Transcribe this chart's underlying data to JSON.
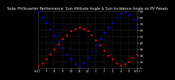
{
  "title": "Solar PV/Inverter Performance  Sun Altitude Angle & Sun Incidence Angle on PV Panels",
  "background_color": "#000000",
  "grid_color": "#444444",
  "fig_bg": "#000000",
  "blue_color": "#0000ff",
  "red_color": "#ff0000",
  "ylim": [
    0,
    90
  ],
  "xlim": [
    0,
    48
  ],
  "x_ticks": [
    0,
    4,
    8,
    12,
    16,
    20,
    24,
    28,
    32,
    36,
    40,
    44,
    48
  ],
  "x_labels": [
    "6/17",
    "7",
    "8",
    "9",
    "10",
    "11",
    "12",
    "1",
    "2",
    "3",
    "4",
    "5",
    "6/17"
  ],
  "y_ticks_right": [
    0,
    10,
    20,
    30,
    40,
    50,
    60,
    70,
    80,
    90
  ],
  "title_color": "#ffffff",
  "title_fontsize": 3.8,
  "tick_fontsize": 3.0,
  "blue_x": [
    0,
    2,
    4,
    6,
    8,
    10,
    12,
    14,
    16,
    18,
    20,
    22,
    24,
    26,
    28,
    30,
    32,
    34,
    36,
    38,
    40,
    42,
    44,
    46,
    48
  ],
  "blue_y": [
    88,
    80,
    72,
    62,
    52,
    42,
    32,
    22,
    14,
    6,
    2,
    8,
    16,
    26,
    36,
    46,
    56,
    64,
    72,
    80,
    86,
    88,
    84,
    76,
    65
  ],
  "red_x": [
    0,
    2,
    4,
    6,
    8,
    10,
    12,
    14,
    16,
    18,
    20,
    22,
    24,
    26,
    28,
    30,
    32,
    34,
    36,
    38,
    40,
    42,
    44,
    46,
    48
  ],
  "red_y": [
    4,
    8,
    14,
    22,
    30,
    38,
    46,
    52,
    58,
    62,
    64,
    62,
    58,
    52,
    44,
    36,
    28,
    20,
    14,
    8,
    4,
    6,
    10,
    16,
    22
  ]
}
